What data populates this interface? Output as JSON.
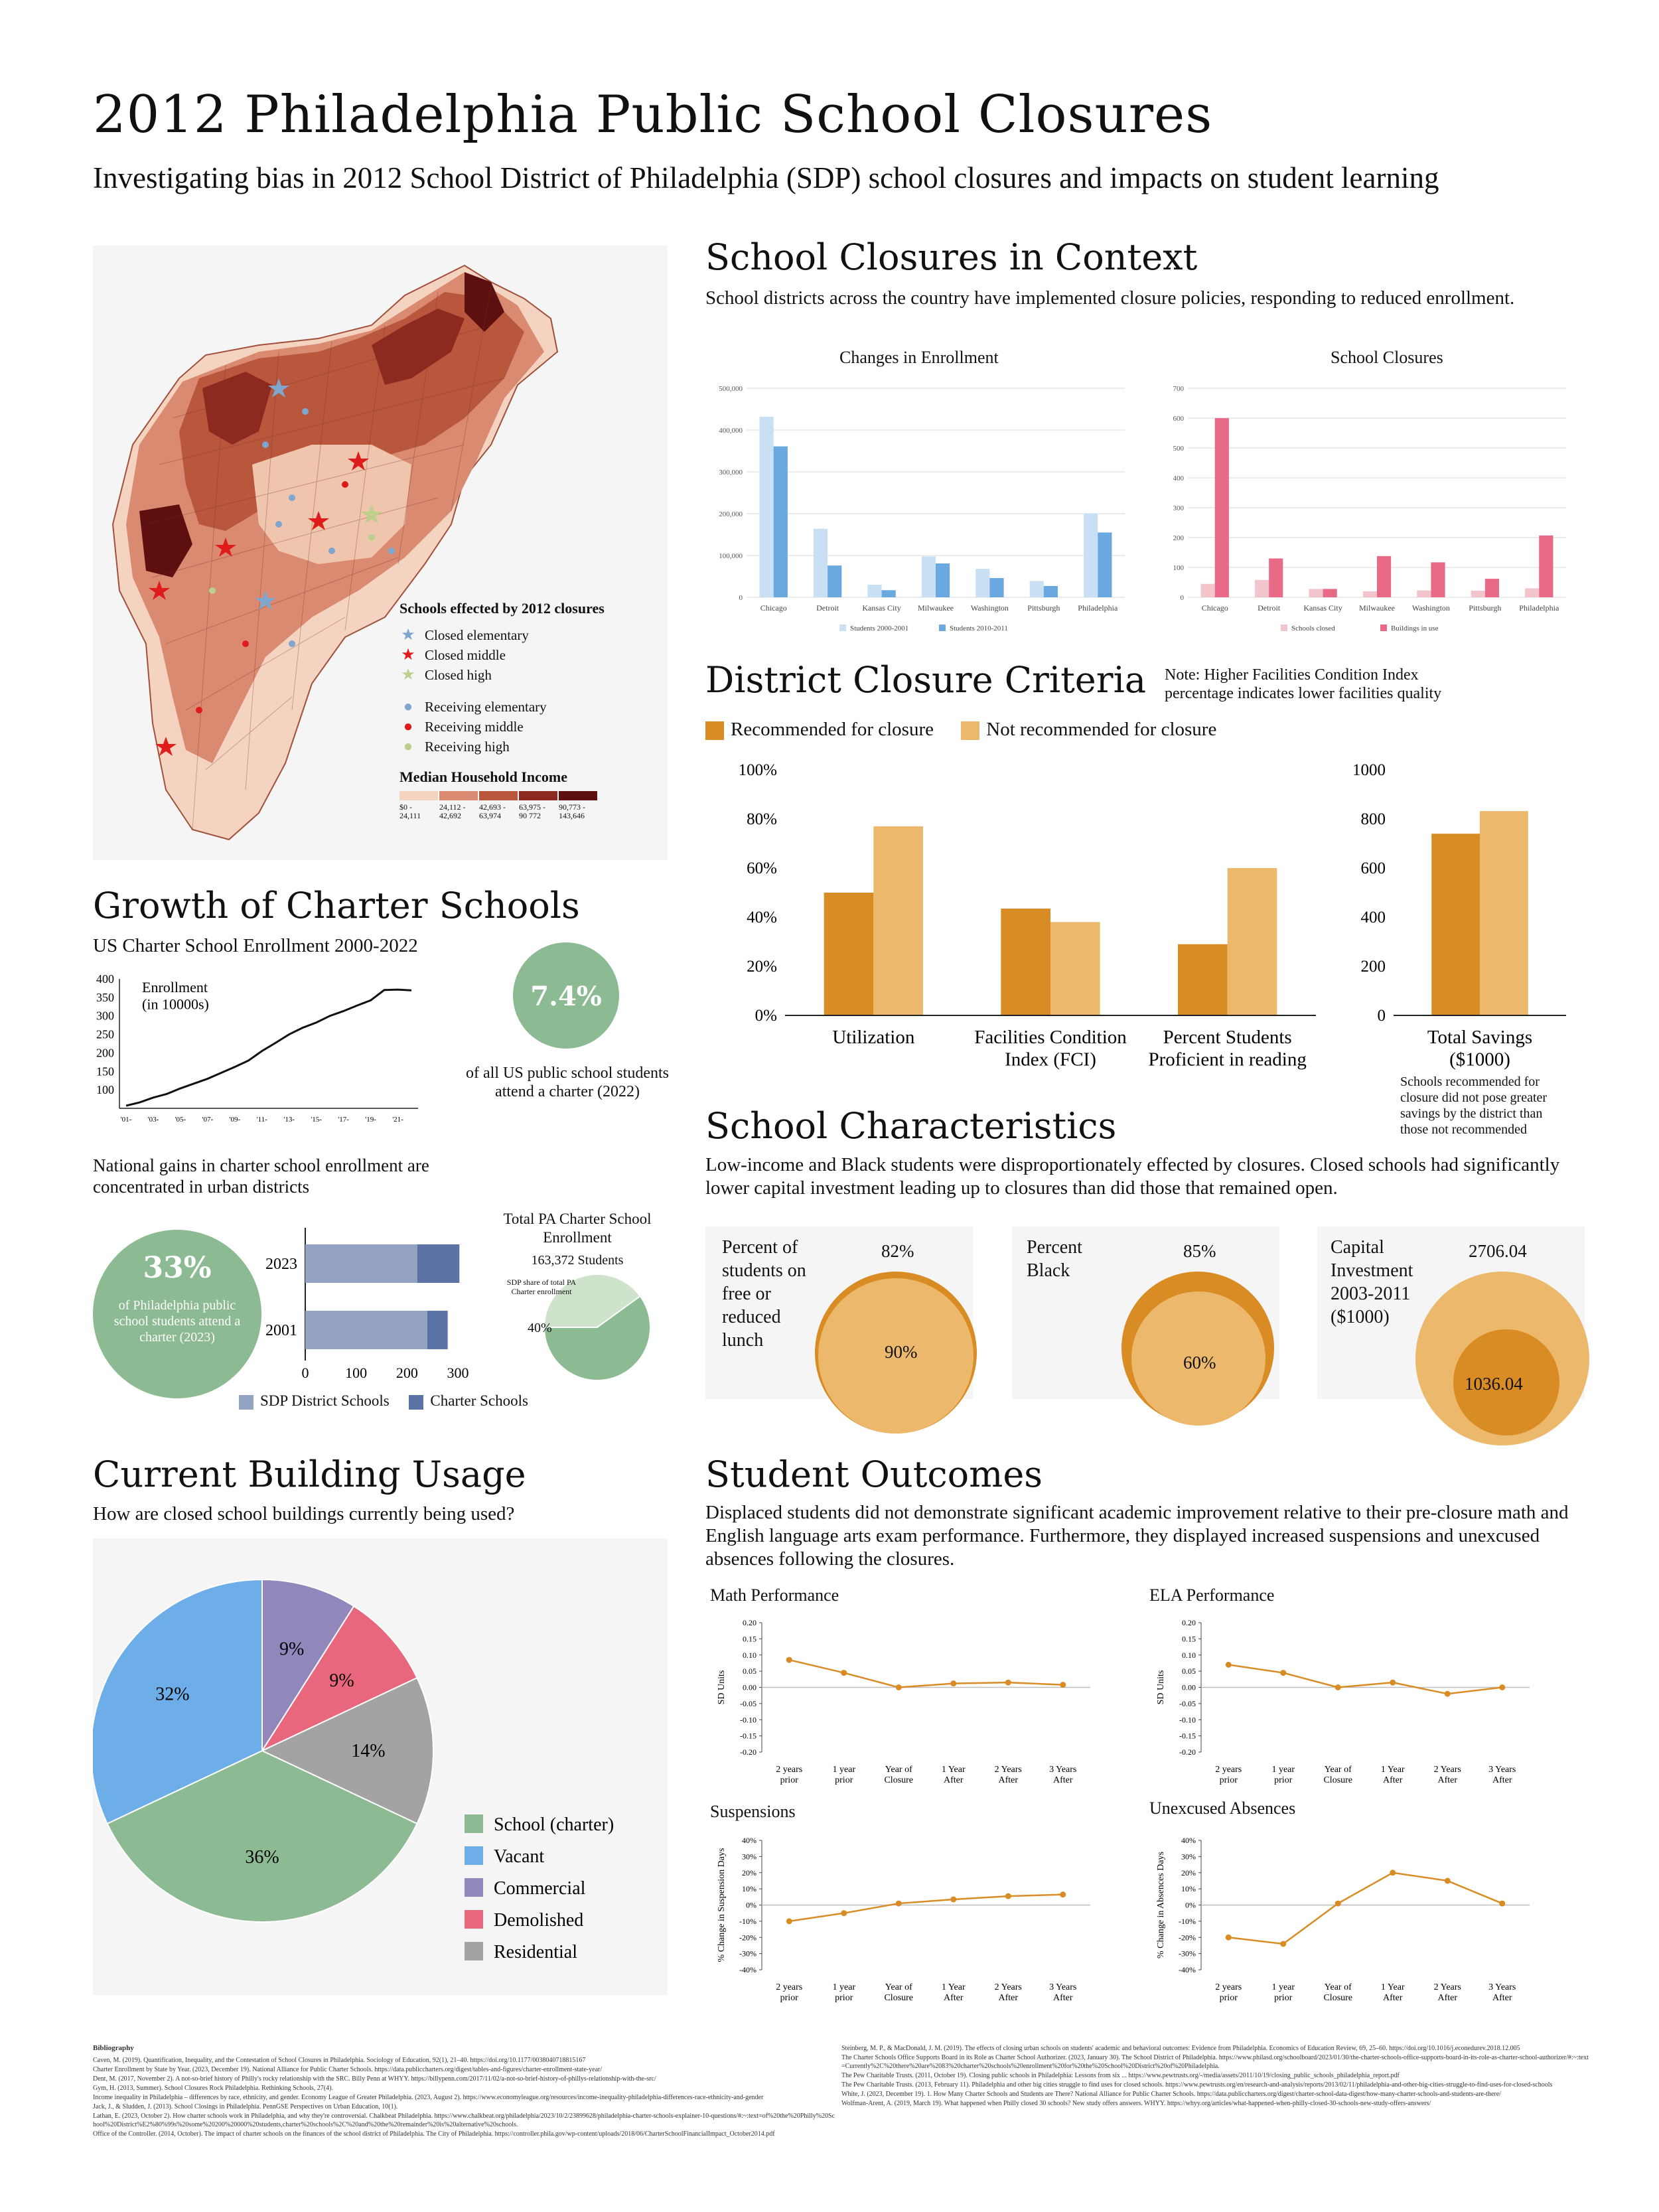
{
  "page": {
    "title": "2012 Philadelphia Public School Closures",
    "subtitle": "Investigating bias in 2012 School District of Philadelphia (SDP) school closures and impacts on student learning"
  },
  "colors": {
    "recommended": "#d98b24",
    "not_recommended": "#ecb86b",
    "light_blue": "#c9dff3",
    "blue": "#6aa8e0",
    "pink_light": "#f2c4cc",
    "pink": "#e86a87",
    "green": "#8cba92",
    "slate_light": "#93a3c1",
    "slate": "#5c73a6",
    "map_base": "#b0533a"
  },
  "map": {
    "legend_title": "Schools effected by 2012 closures",
    "legend_items": [
      {
        "label": "Closed elementary",
        "icon": "blue-star-icon",
        "color": "#7fa6cf"
      },
      {
        "label": "Closed middle",
        "icon": "red-star-icon",
        "color": "#e01b1b"
      },
      {
        "label": "Closed high",
        "icon": "green-star-icon",
        "color": "#bcd08c"
      },
      {
        "label": "Receiving elementary",
        "icon": "blue-dot-icon",
        "color": "#7fa6cf"
      },
      {
        "label": "Receiving middle",
        "icon": "red-dot-icon",
        "color": "#e01b1b"
      },
      {
        "label": "Receiving high",
        "icon": "green-dot-icon",
        "color": "#bcd08c"
      }
    ],
    "income_title": "Median Household Income",
    "income_bins": [
      {
        "label": "$0 -\n24,111",
        "color": "#f4d4c0"
      },
      {
        "label": "24,112 -\n42,692",
        "color": "#d98a70"
      },
      {
        "label": "42,693 -\n63,974",
        "color": "#b9573d"
      },
      {
        "label": "63,975 -\n90 772",
        "color": "#8c2a20"
      },
      {
        "label": "90,773 -\n143,646",
        "color": "#5e1010"
      }
    ]
  },
  "context": {
    "heading": "School Closures in Context",
    "text": "School districts across the country have implemented closure policies, responding to reduced enrollment."
  },
  "criteria": {
    "heading": "District Closure Criteria",
    "note": "Note: Higher Facilities Condition Index percentage indicates lower facilities quality",
    "legend_recommended": "Recommended for closure",
    "legend_not": "Not recommended for closure",
    "savings_note": "Schools recommended for closure did not pose greater savings by the district than those not recommended"
  },
  "charter": {
    "heading": "Growth of Charter Schools",
    "chart_title": "US Charter School Enrollment 2000-2022",
    "pct_us": "7.4%",
    "pct_us_caption": "of all US public school students attend a charter (2022)",
    "gains_text": "National gains in charter school enrollment are concentrated in urban districts",
    "pct_phl": "33%",
    "pct_phl_caption": "of Philadelphia public school students attend a charter (2023)",
    "pa_title": "Total PA Charter School Enrollment",
    "pa_students": "163,372 Students",
    "pa_share_label": "SDP share of total PA Charter enrollment",
    "pa_share_value": "40%"
  },
  "characteristics": {
    "heading": "School Characteristics",
    "text": "Low-income and Black students were disproportionately effected by closures. Closed schools had significantly lower capital investment leading up to closures than did those that remained open.",
    "items": [
      {
        "label": "Percent of students on free or reduced lunch",
        "top": "82%",
        "inner": "90%"
      },
      {
        "label": "Percent Black",
        "top": "85%",
        "inner": "60%"
      },
      {
        "label": "Capital Investment 2003-2011 ($1000)",
        "top": "2706.04",
        "inner": "1036.04"
      }
    ]
  },
  "usage": {
    "heading": "Current Building Usage",
    "question": "How are closed school buildings currently being used?"
  },
  "outcomes": {
    "heading": "Student Outcomes",
    "text": "Displaced students did not demonstrate significant academic improvement relative to their pre-closure math and English language arts exam performance. Furthermore, they displayed increased suspensions and unexcused absences following the closures."
  },
  "bibliography": {
    "title": "Bibliography",
    "left": [
      "Caven, M. (2019). Quantification, Inequality, and the Contestation of School Closures in Philadelphia. Sociology of Education, 92(1), 21–40. https://doi.org/10.1177/0038040718815167",
      "Charter Enrollment by State by Year. (2023, December 19). National Alliance for Public Charter Schools. https://data.publiccharters.org/digest/tables-and-figures/charter-enrollment-state-year/",
      "Dent, M. (2017, November 2). A not-so-brief history of Philly's rocky relationship with the SRC. Billy Penn at WHYY. https://billypenn.com/2017/11/02/a-not-so-brief-history-of-phillys-relationship-with-the-src/",
      "Gym, H. (2013, Summer). School Closures Rock Philadelphia. Rethinking Schools, 27(4).",
      "Income inequality in Philadelphia – differences by race, ethnicity, and gender. Economy League of Greater Philadelphia. (2023, August 2). https://www.economyleague.org/resources/income-inequality-philadelphia-differences-race-ethnicity-and-gender",
      "Jack, J., & Sludden, J. (2013). School Closings in Philadelphia. PennGSE Perspectives on Urban Education, 10(1).",
      "Lathan, E. (2023, October 2). How charter schools work in Philadelphia, and why they're controversial. Chalkbeat Philadelphia. https://www.chalkbeat.org/philadelphia/2023/10/2/23899628/philadelphia-charter-schools-explainer-10-questions/#:~:text=of%20the%20Philly%20School%20District%E2%80%99s%20some%20200%20000%20students,charter%20schools%2C%20and%20the%20remainder%20is%20alternative%20schools.",
      "Office of the Controller. (2014, October). The impact of charter schools on the finances of the school district of Philadelphia. The City of Philadelphia. https://controller.phila.gov/wp-content/uploads/2018/06/CharterSchoolFinancialImpact_October2014.pdf"
    ],
    "right": [
      "Steinberg, M. P., & MacDonald, J. M. (2019). The effects of closing urban schools on students' academic and behavioral outcomes: Evidence from Philadelphia. Economics of Education Review, 69, 25–60. https://doi.org/10.1016/j.econedurev.2018.12.005",
      "The Charter Schools Office Supports Board in its Role as Charter School Authorizer. (2023, January 30). The School District of Philadelphia. https://www.philasd.org/schoolboard/2023/01/30/the-charter-schools-office-supports-board-in-its-role-as-charter-school-authorizer/#:~:text=Currently%2C%20there%20are%2083%20charter%20schools%20enrollment%20for%20the%20School%20District%20of%20Philadelphia.",
      "The Pew Charitable Trusts. (2011, October 19). Closing public schools in Philadelphia: Lessons from six ... https://www.pewtrusts.org/-/media/assets/2011/10/19/closing_public_schools_philadelphia_report.pdf",
      "The Pew Charitable Trusts. (2013, February 11). Philadelphia and other big cities struggle to find uses for closed schools. https://www.pewtrusts.org/en/research-and-analysis/reports/2013/02/11/philadelphia-and-other-big-cities-struggle-to-find-uses-for-closed-schools",
      "White, J. (2023, December 19). 1. How Many Charter Schools and Students are There? National Alliance for Public Charter Schools. https://data.publiccharters.org/digest/charter-school-data-digest/how-many-charter-schools-and-students-are-there/",
      "Wolfman-Arent, A. (2019, March 19). What happened when Philly closed 30 schools? New study offers answers. WHYY. https://whyy.org/articles/what-happened-when-philly-closed-30-schools-new-study-offers-answers/"
    ]
  },
  "chart_data": [
    {
      "id": "enrollment",
      "type": "bar",
      "title": "Changes in Enrollment",
      "categories": [
        "Chicago",
        "Detroit",
        "Kansas City",
        "Milwaukee",
        "Washington",
        "Pittsburgh",
        "Philadelphia"
      ],
      "series": [
        {
          "name": "Students 2000-2001",
          "color": "#c9dff3",
          "values": [
            432000,
            164000,
            30000,
            98000,
            68000,
            39000,
            201000
          ]
        },
        {
          "name": "Students 2010-2011",
          "color": "#6aa8e0",
          "values": [
            361000,
            76000,
            17000,
            81000,
            46000,
            27000,
            155000
          ]
        }
      ],
      "ylim": [
        0,
        500000
      ],
      "yticks": [
        0,
        100000,
        200000,
        300000,
        400000,
        500000
      ],
      "ytick_labels": [
        "0",
        "100,000",
        "200,000",
        "300,000",
        "400,000",
        "500,000"
      ]
    },
    {
      "id": "closures",
      "type": "bar",
      "title": "School Closures",
      "categories": [
        "Chicago",
        "Detroit",
        "Kansas City",
        "Milwaukee",
        "Washington",
        "Pittsburgh",
        "Philadelphia"
      ],
      "series": [
        {
          "name": "Schools closed",
          "color": "#f2c4cc",
          "values": [
            45,
            58,
            28,
            20,
            23,
            22,
            30
          ]
        },
        {
          "name": "Buildings in use",
          "color": "#e86a87",
          "values": [
            600,
            130,
            28,
            138,
            117,
            62,
            207
          ]
        }
      ],
      "ylim": [
        0,
        700
      ],
      "yticks": [
        0,
        100,
        200,
        300,
        400,
        500,
        600,
        700
      ],
      "ytick_labels": [
        "0",
        "100",
        "200",
        "300",
        "400",
        "500",
        "600",
        "700"
      ]
    },
    {
      "id": "criteria_pct",
      "type": "bar",
      "categories": [
        "Utilization",
        "Facilities Condition\nIndex (FCI)",
        "Percent Students\nProficient in reading"
      ],
      "series": [
        {
          "name": "Recommended for closure",
          "values": [
            50,
            43.5,
            29
          ]
        },
        {
          "name": "Not recommended for closure",
          "values": [
            77,
            38,
            60
          ]
        }
      ],
      "ylim": [
        0,
        100
      ],
      "yticks": [
        0,
        20,
        40,
        60,
        80,
        100
      ],
      "ytick_labels": [
        "0%",
        "20%",
        "40%",
        "60%",
        "80%",
        "100%"
      ]
    },
    {
      "id": "criteria_savings",
      "type": "bar",
      "categories": [
        "Total Savings\n($1000)"
      ],
      "series": [
        {
          "name": "Recommended for closure",
          "values": [
            740
          ]
        },
        {
          "name": "Not recommended for closure",
          "values": [
            832
          ]
        }
      ],
      "ylim": [
        0,
        1000
      ],
      "yticks": [
        0,
        200,
        400,
        600,
        800,
        1000
      ],
      "ytick_labels": [
        "0",
        "200",
        "400",
        "600",
        "800",
        "1000"
      ]
    },
    {
      "id": "charter_line",
      "type": "line",
      "title": "Enrollment\n(in 10000s)",
      "x": [
        "'01",
        "'02",
        "'03",
        "'04",
        "'05",
        "'06",
        "'07",
        "'08",
        "'09",
        "'10",
        "'11",
        "'12",
        "'13",
        "'14",
        "'15",
        "'16",
        "'17",
        "'18",
        "'19",
        "'20",
        "'21",
        "'22"
      ],
      "x_tick_labels": [
        "'01-",
        "'03-",
        "'05-",
        "'07-",
        "'09-",
        "'11-",
        "'13-",
        "'15-",
        "'17-",
        "'19-",
        "'21-"
      ],
      "values": [
        57,
        66,
        79,
        89,
        104,
        117,
        130,
        146,
        162,
        179,
        205,
        227,
        250,
        268,
        282,
        300,
        313,
        328,
        342,
        370,
        371,
        369
      ],
      "ylim": [
        50,
        400
      ],
      "yticks": [
        100,
        150,
        200,
        250,
        300,
        350,
        400
      ]
    },
    {
      "id": "charter_stacked",
      "type": "bar",
      "categories": [
        "2023",
        "2001"
      ],
      "series": [
        {
          "name": "SDP District Schools",
          "values": [
            220,
            240
          ]
        },
        {
          "name": "Charter Schools",
          "values": [
            83,
            40
          ]
        }
      ],
      "xlim": [
        0,
        300
      ],
      "xticks": [
        0,
        100,
        200,
        300
      ]
    },
    {
      "id": "pa_pie",
      "type": "pie",
      "values": [
        40,
        60
      ],
      "labels": [
        "SDP share of total PA Charter enrollment",
        "Other"
      ]
    },
    {
      "id": "usage",
      "type": "pie",
      "labels": [
        "School (charter)",
        "Vacant",
        "Commercial",
        "Demolished",
        "Residential"
      ],
      "values": [
        36,
        32,
        9,
        9,
        14
      ],
      "colors": [
        "#8cba92",
        "#6eaee8",
        "#9187ba",
        "#e8677c",
        "#a3a3a3"
      ],
      "value_labels": [
        "36%",
        "32%",
        "9%",
        "9%",
        "14%"
      ]
    },
    {
      "id": "math",
      "type": "line",
      "title": "Math Performance",
      "ylabel": "SD Units",
      "categories": [
        "2 years\nprior",
        "1 year\nprior",
        "Year of\nClosure",
        "1 Year\nAfter",
        "2 Years\nAfter",
        "3 Years\nAfter"
      ],
      "values": [
        0.085,
        0.045,
        0.0,
        0.012,
        0.015,
        0.008
      ],
      "ylim": [
        -0.2,
        0.2
      ],
      "yticks": [
        -0.2,
        -0.15,
        -0.1,
        -0.05,
        0,
        0.05,
        0.1,
        0.15,
        0.2
      ],
      "ytick_labels": [
        "-0.20",
        "-0.15",
        "-0.10",
        "-0.05",
        "0.00",
        "0.05",
        "0.10",
        "0.15",
        "0.20"
      ]
    },
    {
      "id": "ela",
      "type": "line",
      "title": "ELA Performance",
      "ylabel": "SD Units",
      "categories": [
        "2 years\nprior",
        "1 year\nprior",
        "Year of\nClosure",
        "1 Year\nAfter",
        "2 Years\nAfter",
        "3 Years\nAfter"
      ],
      "values": [
        0.07,
        0.045,
        0.0,
        0.015,
        -0.02,
        0.0
      ],
      "ylim": [
        -0.2,
        0.2
      ],
      "yticks": [
        -0.2,
        -0.15,
        -0.1,
        -0.05,
        0,
        0.05,
        0.1,
        0.15,
        0.2
      ],
      "ytick_labels": [
        "-0.20",
        "-0.15",
        "-0.10",
        "-0.05",
        "0.00",
        "0.05",
        "0.10",
        "0.15",
        "0.20"
      ]
    },
    {
      "id": "suspensions",
      "type": "line",
      "title": "Suspensions",
      "ylabel": "% Change in Suspension Days",
      "categories": [
        "2 years\nprior",
        "1 year\nprior",
        "Year of\nClosure",
        "1 Year\nAfter",
        "2 Years\nAfter",
        "3 Years\nAfter"
      ],
      "values": [
        -10,
        -5,
        1,
        3.5,
        5.5,
        6.5
      ],
      "ylim": [
        -40,
        40
      ],
      "yticks": [
        -40,
        -30,
        -20,
        -10,
        0,
        10,
        20,
        30,
        40
      ],
      "ytick_labels": [
        "-40%",
        "-30%",
        "-20%",
        "-10%",
        "0%",
        "10%",
        "20%",
        "30%",
        "40%"
      ]
    },
    {
      "id": "absences",
      "type": "line",
      "title": "Unexcused Absences",
      "ylabel": "% Change in Absences Days",
      "categories": [
        "2 years\nprior",
        "1 year\nprior",
        "Year of\nClosure",
        "1 Year\nAfter",
        "2 Years\nAfter",
        "3 Years\nAfter"
      ],
      "values": [
        -20,
        -24,
        1,
        20,
        15,
        1
      ],
      "ylim": [
        -40,
        40
      ],
      "yticks": [
        -40,
        -30,
        -20,
        -10,
        0,
        10,
        20,
        30,
        40
      ],
      "ytick_labels": [
        "-40%",
        "-30%",
        "-20%",
        "-10%",
        "0%",
        "10%",
        "20%",
        "30%",
        "40%"
      ]
    }
  ]
}
